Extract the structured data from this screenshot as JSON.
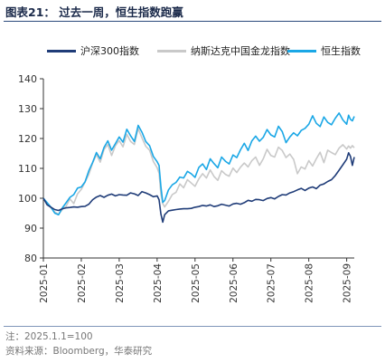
{
  "figure": {
    "title": "图表21：  过去一周，恒生指数跑赢",
    "note": "注：2025.1.1=100",
    "source": "资料来源：Bloomberg，华泰研究"
  },
  "colors": {
    "csi300": "#1f3c78",
    "chinext_dragon": "#c9c9c9",
    "hsi": "#1aa7e6",
    "rule": "#2a4a7c"
  },
  "chart_data": {
    "type": "line",
    "ylim": [
      80,
      140
    ],
    "yticks": [
      80,
      90,
      100,
      110,
      120,
      130,
      140
    ],
    "x_categories": [
      "2025-01",
      "2025-02",
      "2025-03",
      "2025-04",
      "2025-05",
      "2025-06",
      "2025-07",
      "2025-08",
      "2025-09"
    ],
    "legend_position": "top",
    "grid": false,
    "series": [
      {
        "name": "沪深300指数",
        "color_key": "csi300",
        "x": [
          0.0,
          0.1,
          0.2,
          0.3,
          0.4,
          0.5,
          0.6,
          0.7,
          0.8,
          0.9,
          1.0,
          1.1,
          1.2,
          1.3,
          1.4,
          1.5,
          1.6,
          1.7,
          1.8,
          1.9,
          2.0,
          2.1,
          2.2,
          2.3,
          2.4,
          2.5,
          2.6,
          2.7,
          2.8,
          2.9,
          3.0,
          3.05,
          3.1,
          3.15,
          3.2,
          3.3,
          3.4,
          3.5,
          3.6,
          3.7,
          3.8,
          3.9,
          4.0,
          4.1,
          4.2,
          4.3,
          4.4,
          4.5,
          4.6,
          4.7,
          4.8,
          4.9,
          5.0,
          5.1,
          5.2,
          5.3,
          5.4,
          5.5,
          5.6,
          5.7,
          5.8,
          5.9,
          6.0,
          6.1,
          6.2,
          6.3,
          6.4,
          6.5,
          6.6,
          6.7,
          6.8,
          6.9,
          7.0,
          7.1,
          7.2,
          7.3,
          7.4,
          7.5,
          7.6,
          7.7,
          7.8,
          7.9,
          8.0,
          8.05,
          8.1,
          8.15,
          8.2
        ],
        "y": [
          100.0,
          97.8,
          97.0,
          96.2,
          95.9,
          96.5,
          96.8,
          96.9,
          97.1,
          97.0,
          97.2,
          97.3,
          98.0,
          99.5,
          100.4,
          100.9,
          100.3,
          101.0,
          101.4,
          100.8,
          101.2,
          101.1,
          101.0,
          101.8,
          101.5,
          100.9,
          102.2,
          101.8,
          101.2,
          100.5,
          100.8,
          99.5,
          94.8,
          92.0,
          94.5,
          95.8,
          96.0,
          96.2,
          96.4,
          96.5,
          96.5,
          96.6,
          97.0,
          97.2,
          97.6,
          97.4,
          97.8,
          97.2,
          97.5,
          98.0,
          97.7,
          97.4,
          98.1,
          98.3,
          98.0,
          98.5,
          99.3,
          99.0,
          99.6,
          99.5,
          99.2,
          99.9,
          100.2,
          99.8,
          100.6,
          101.2,
          101.1,
          101.8,
          102.2,
          102.8,
          103.3,
          102.6,
          103.4,
          103.8,
          103.2,
          104.4,
          104.8,
          105.6,
          106.2,
          107.6,
          109.4,
          111.2,
          113.1,
          115.2,
          114.0,
          111.0,
          113.8
        ]
      },
      {
        "name": "纳斯达克中国金龙指数",
        "color_key": "chinext_dragon",
        "x": [
          0.0,
          0.1,
          0.2,
          0.3,
          0.4,
          0.5,
          0.6,
          0.7,
          0.8,
          0.9,
          1.0,
          1.1,
          1.2,
          1.3,
          1.4,
          1.5,
          1.6,
          1.7,
          1.8,
          1.9,
          2.0,
          2.1,
          2.2,
          2.3,
          2.4,
          2.5,
          2.6,
          2.7,
          2.8,
          2.9,
          3.0,
          3.05,
          3.1,
          3.15,
          3.2,
          3.3,
          3.4,
          3.5,
          3.6,
          3.7,
          3.8,
          3.9,
          4.0,
          4.1,
          4.2,
          4.3,
          4.4,
          4.5,
          4.6,
          4.7,
          4.8,
          4.9,
          5.0,
          5.1,
          5.2,
          5.3,
          5.4,
          5.5,
          5.6,
          5.7,
          5.8,
          5.9,
          6.0,
          6.1,
          6.2,
          6.3,
          6.4,
          6.5,
          6.6,
          6.7,
          6.8,
          6.9,
          7.0,
          7.1,
          7.2,
          7.3,
          7.4,
          7.5,
          7.6,
          7.7,
          7.8,
          7.9,
          8.0,
          8.05,
          8.1,
          8.15,
          8.2
        ],
        "y": [
          100.0,
          98.0,
          96.8,
          95.4,
          94.6,
          96.2,
          97.4,
          99.8,
          98.2,
          101.5,
          103.0,
          105.4,
          108.0,
          111.8,
          114.6,
          112.1,
          116.3,
          118.0,
          114.3,
          117.6,
          119.3,
          117.2,
          121.4,
          119.0,
          118.0,
          123.3,
          120.2,
          117.4,
          116.1,
          112.3,
          110.2,
          108.4,
          101.5,
          98.2,
          97.1,
          99.0,
          101.2,
          102.0,
          104.8,
          103.5,
          106.2,
          105.1,
          104.0,
          106.5,
          108.2,
          106.8,
          109.5,
          107.3,
          106.0,
          109.2,
          108.0,
          107.4,
          110.1,
          108.6,
          110.4,
          111.8,
          110.5,
          112.6,
          113.8,
          111.0,
          113.2,
          116.4,
          114.3,
          113.8,
          117.1,
          116.0,
          113.6,
          114.8,
          113.0,
          108.2,
          110.5,
          109.8,
          112.6,
          110.8,
          113.2,
          115.4,
          111.9,
          116.1,
          115.3,
          114.6,
          116.8,
          117.9,
          116.5,
          117.5,
          116.8,
          117.6,
          116.9
        ]
      },
      {
        "name": "恒生指数",
        "color_key": "hsi",
        "x": [
          0.0,
          0.1,
          0.2,
          0.3,
          0.4,
          0.5,
          0.6,
          0.7,
          0.8,
          0.9,
          1.0,
          1.1,
          1.2,
          1.3,
          1.4,
          1.5,
          1.6,
          1.7,
          1.8,
          1.9,
          2.0,
          2.1,
          2.2,
          2.3,
          2.4,
          2.5,
          2.6,
          2.7,
          2.8,
          2.9,
          3.0,
          3.05,
          3.1,
          3.15,
          3.2,
          3.3,
          3.4,
          3.5,
          3.6,
          3.7,
          3.8,
          3.9,
          4.0,
          4.1,
          4.2,
          4.3,
          4.4,
          4.5,
          4.6,
          4.7,
          4.8,
          4.9,
          5.0,
          5.1,
          5.2,
          5.3,
          5.4,
          5.5,
          5.6,
          5.7,
          5.8,
          5.9,
          6.0,
          6.1,
          6.2,
          6.3,
          6.4,
          6.5,
          6.6,
          6.7,
          6.8,
          6.9,
          7.0,
          7.1,
          7.2,
          7.3,
          7.4,
          7.5,
          7.6,
          7.7,
          7.8,
          7.9,
          8.0,
          8.05,
          8.1,
          8.15,
          8.2
        ],
        "y": [
          100.0,
          98.5,
          97.0,
          95.0,
          94.5,
          96.8,
          98.5,
          100.3,
          101.2,
          103.4,
          103.8,
          105.5,
          109.2,
          112.0,
          115.3,
          113.2,
          117.0,
          119.2,
          116.1,
          118.3,
          120.5,
          118.8,
          123.1,
          120.9,
          119.0,
          124.4,
          122.1,
          119.0,
          117.6,
          114.0,
          112.2,
          111.0,
          104.0,
          98.6,
          99.2,
          102.8,
          104.5,
          105.3,
          107.1,
          106.8,
          109.0,
          108.2,
          107.0,
          110.3,
          111.5,
          109.6,
          113.2,
          111.6,
          110.2,
          113.8,
          112.4,
          111.5,
          114.5,
          113.6,
          116.2,
          118.4,
          116.0,
          119.2,
          120.8,
          119.1,
          120.4,
          123.0,
          121.2,
          120.5,
          124.1,
          122.3,
          118.6,
          120.5,
          121.9,
          120.9,
          122.7,
          123.4,
          124.8,
          127.6,
          125.1,
          124.0,
          127.2,
          125.4,
          124.6,
          126.8,
          128.5,
          126.2,
          124.8,
          127.8,
          126.4,
          125.9,
          127.4
        ]
      }
    ]
  }
}
